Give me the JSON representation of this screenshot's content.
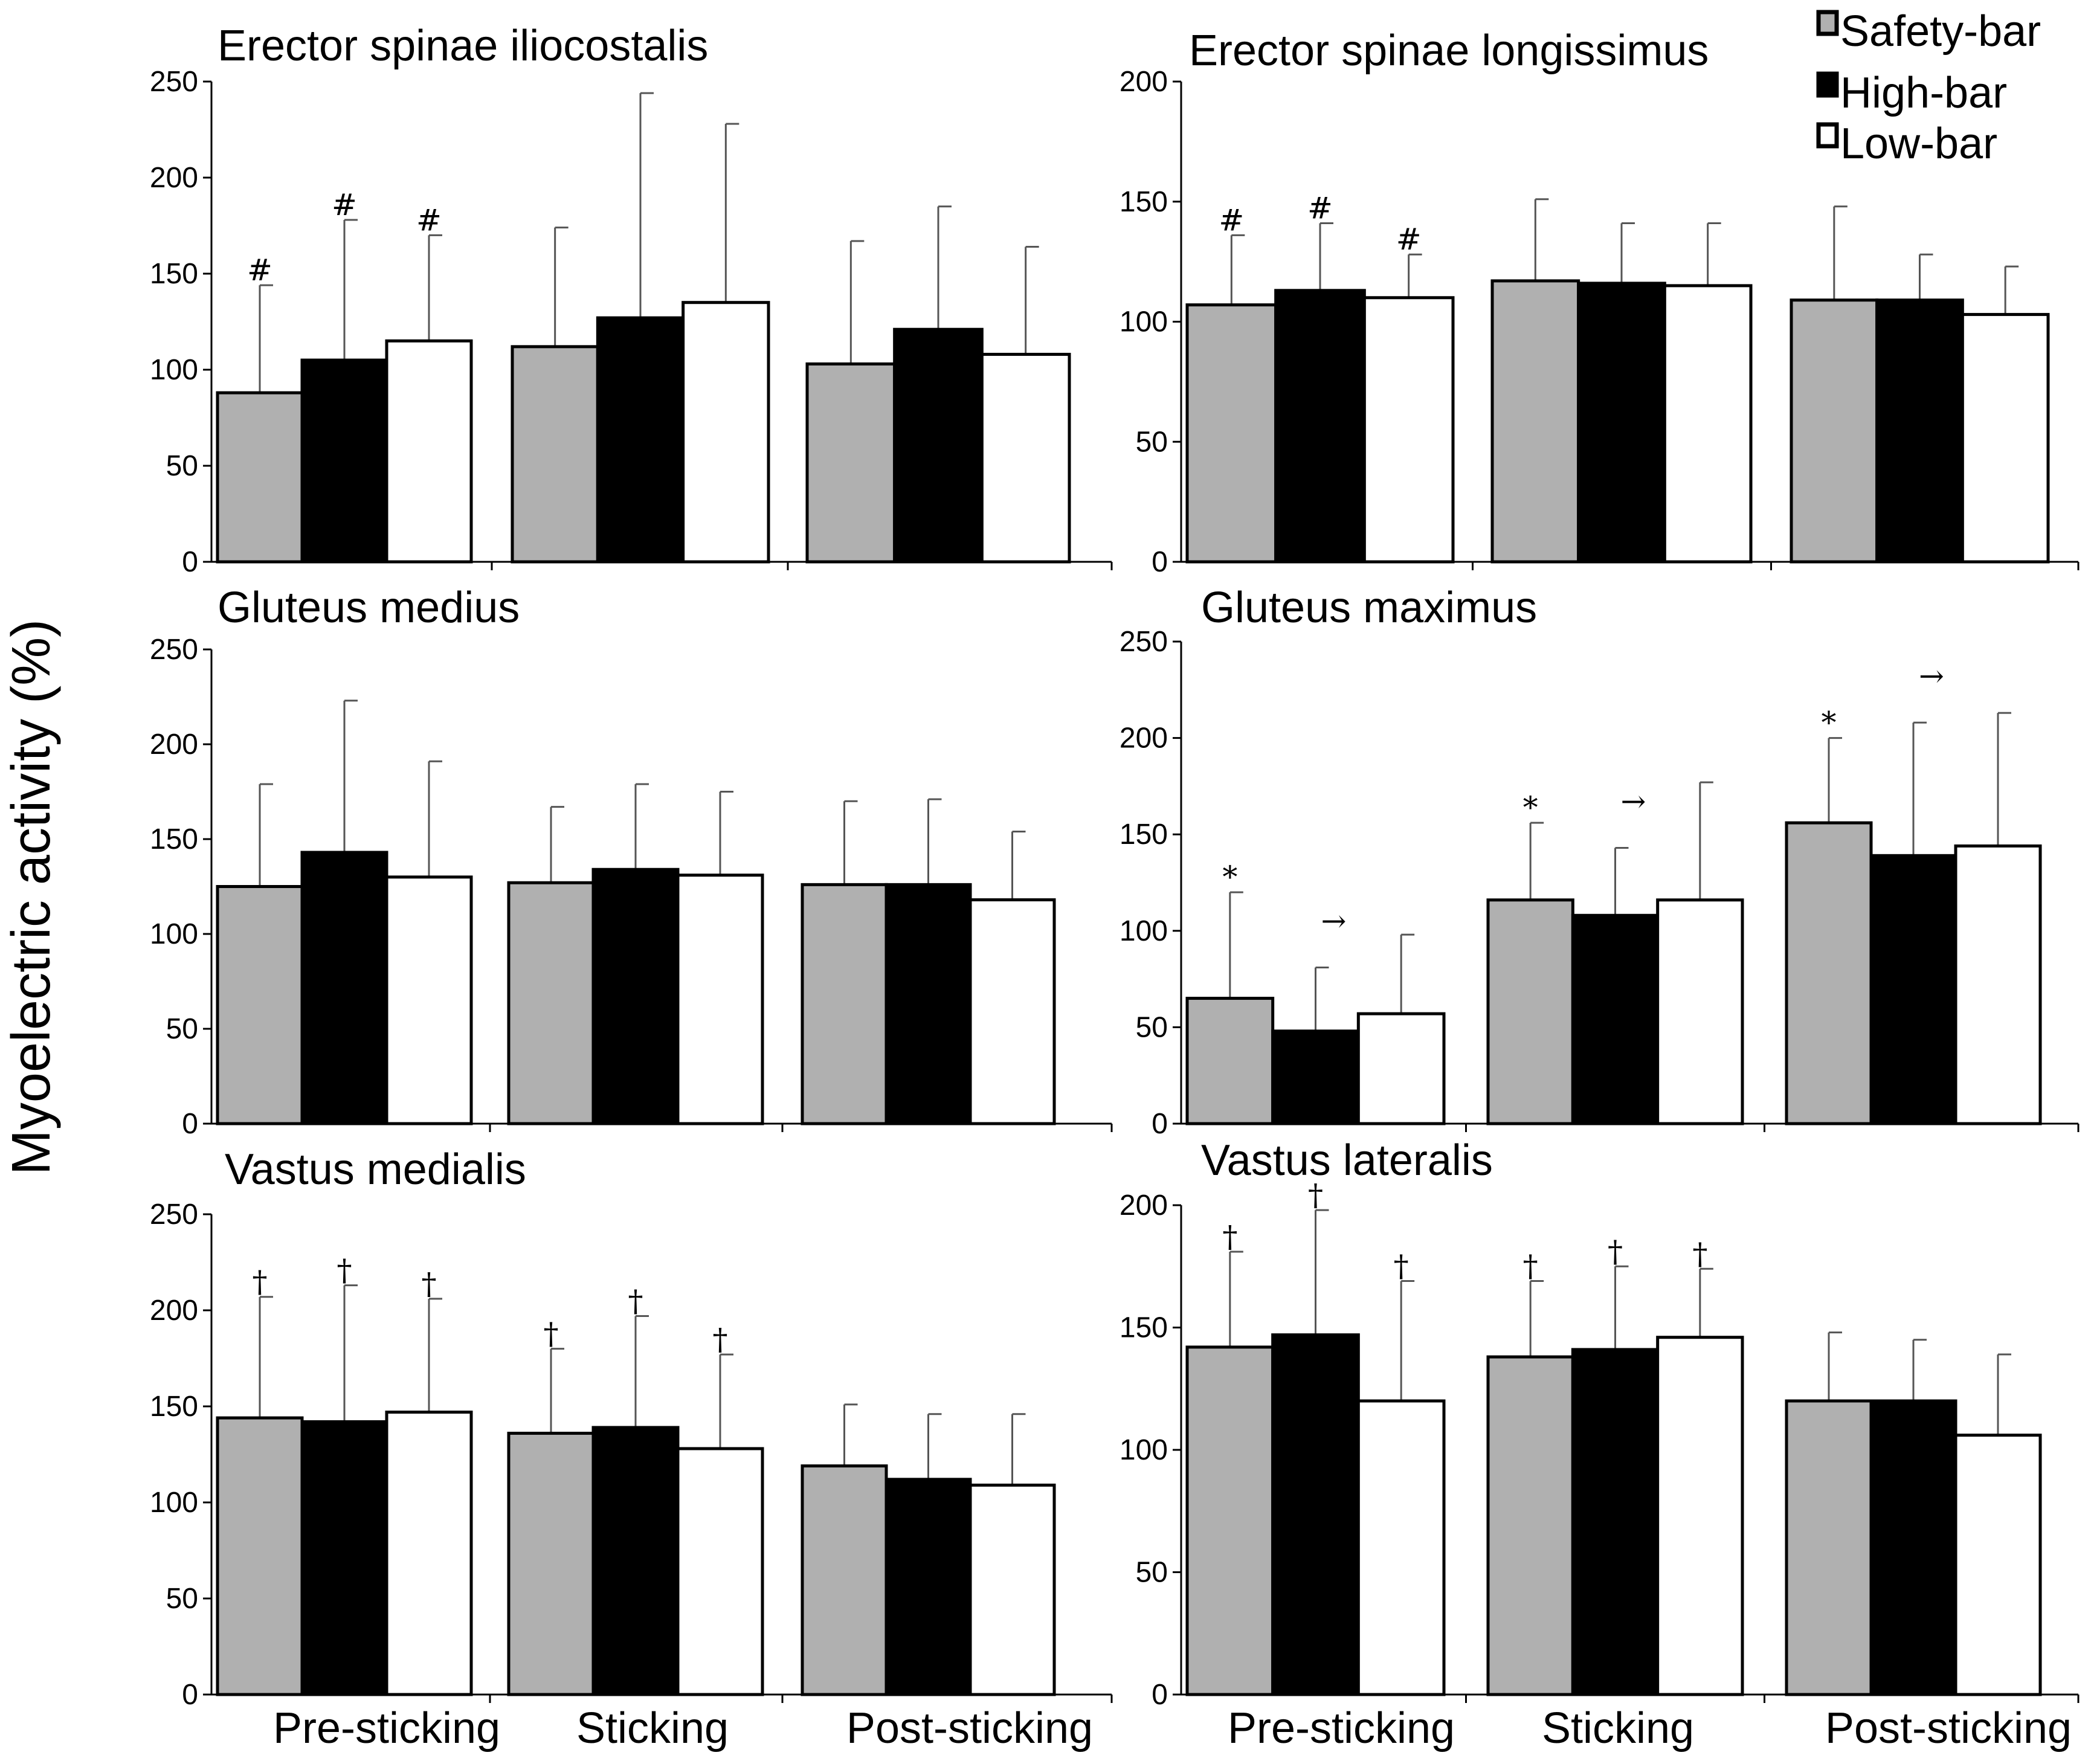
{
  "figure": {
    "ylabel": "Myoelectric activity (%)",
    "legend": [
      {
        "label": "Safety-bar",
        "color": "#b0b0b0"
      },
      {
        "label": "High-bar",
        "color": "#000000"
      },
      {
        "label": "Low-bar",
        "color": "#ffffff"
      }
    ],
    "markers": {
      "hash": "#",
      "star": "*",
      "dagger": "†",
      "arrow": "→"
    }
  },
  "chart_data": [
    {
      "type": "bar",
      "title": "Erector spinae iliocostalis",
      "categories": [
        "Pre-sticking",
        "Sticking",
        "Post-sticking"
      ],
      "ylim": [
        0,
        250
      ],
      "yticks": [
        "0",
        "50",
        "100",
        "150",
        "200",
        "250"
      ],
      "series": [
        {
          "name": "Safety-bar",
          "values": [
            88,
            112,
            103
          ],
          "errors": [
            56,
            62,
            64
          ],
          "markers": [
            "#",
            "",
            ""
          ]
        },
        {
          "name": "High-bar",
          "values": [
            105,
            127,
            121
          ],
          "errors": [
            73,
            117,
            64
          ],
          "markers": [
            "#",
            "",
            ""
          ]
        },
        {
          "name": "Low-bar",
          "values": [
            115,
            135,
            108
          ],
          "errors": [
            55,
            93,
            56
          ],
          "markers": [
            "#",
            "",
            ""
          ]
        }
      ],
      "arrows": []
    },
    {
      "type": "bar",
      "title": "Erector spinae longissimus",
      "categories": [
        "Pre-sticking",
        "Sticking",
        "Post-sticking"
      ],
      "ylim": [
        0,
        200
      ],
      "yticks": [
        "0",
        "50",
        "100",
        "150",
        "200"
      ],
      "series": [
        {
          "name": "Safety-bar",
          "values": [
            107,
            117,
            109
          ],
          "errors": [
            29,
            34,
            39
          ],
          "markers": [
            "#",
            "",
            ""
          ]
        },
        {
          "name": "High-bar",
          "values": [
            113,
            116,
            109
          ],
          "errors": [
            28,
            25,
            19
          ],
          "markers": [
            "#",
            "",
            ""
          ]
        },
        {
          "name": "Low-bar",
          "values": [
            110,
            115,
            103
          ],
          "errors": [
            18,
            26,
            20
          ],
          "markers": [
            "#",
            "",
            ""
          ]
        }
      ],
      "arrows": []
    },
    {
      "type": "bar",
      "title": "Gluteus medius",
      "categories": [
        "Pre-sticking",
        "Sticking",
        "Post-sticking"
      ],
      "ylim": [
        0,
        250
      ],
      "yticks": [
        "0",
        "50",
        "100",
        "150",
        "200",
        "250"
      ],
      "series": [
        {
          "name": "Safety-bar",
          "values": [
            125,
            127,
            126
          ],
          "errors": [
            54,
            40,
            44
          ],
          "markers": [
            "",
            "",
            ""
          ]
        },
        {
          "name": "High-bar",
          "values": [
            143,
            134,
            126
          ],
          "errors": [
            80,
            45,
            45
          ],
          "markers": [
            "",
            "",
            ""
          ]
        },
        {
          "name": "Low-bar",
          "values": [
            130,
            131,
            118
          ],
          "errors": [
            61,
            44,
            36
          ],
          "markers": [
            "",
            "",
            ""
          ]
        }
      ],
      "arrows": []
    },
    {
      "type": "bar",
      "title": "Gluteus maximus",
      "categories": [
        "Pre-sticking",
        "Sticking",
        "Post-sticking"
      ],
      "ylim": [
        0,
        250
      ],
      "yticks": [
        "0",
        "50",
        "100",
        "150",
        "200",
        "250"
      ],
      "series": [
        {
          "name": "Safety-bar",
          "values": [
            65,
            116,
            156
          ],
          "errors": [
            55,
            40,
            44
          ],
          "markers": [
            "*",
            "*",
            "*"
          ]
        },
        {
          "name": "High-bar",
          "values": [
            48,
            108,
            139
          ],
          "errors": [
            33,
            35,
            69
          ],
          "markers": [
            "",
            "",
            ""
          ]
        },
        {
          "name": "Low-bar",
          "values": [
            57,
            116,
            144
          ],
          "errors": [
            41,
            61,
            69
          ],
          "markers": [
            "",
            "",
            ""
          ]
        }
      ],
      "arrows": [
        "→",
        "→",
        "→"
      ]
    },
    {
      "type": "bar",
      "title": "Vastus medialis",
      "categories": [
        "Pre-sticking",
        "Sticking",
        "Post-sticking"
      ],
      "ylim": [
        0,
        250
      ],
      "yticks": [
        "0",
        "50",
        "100",
        "150",
        "200",
        "250"
      ],
      "series": [
        {
          "name": "Safety-bar",
          "values": [
            144,
            136,
            119
          ],
          "errors": [
            63,
            44,
            32
          ],
          "markers": [
            "†",
            "†",
            ""
          ]
        },
        {
          "name": "High-bar",
          "values": [
            142,
            139,
            112
          ],
          "errors": [
            71,
            58,
            34
          ],
          "markers": [
            "†",
            "†",
            ""
          ]
        },
        {
          "name": "Low-bar",
          "values": [
            147,
            128,
            109
          ],
          "errors": [
            59,
            49,
            37
          ],
          "markers": [
            "†",
            "†",
            ""
          ]
        }
      ],
      "arrows": []
    },
    {
      "type": "bar",
      "title": "Vastus lateralis",
      "categories": [
        "Pre-sticking",
        "Sticking",
        "Post-sticking"
      ],
      "ylim": [
        0,
        200
      ],
      "yticks": [
        "0",
        "50",
        "100",
        "150",
        "200"
      ],
      "series": [
        {
          "name": "Safety-bar",
          "values": [
            142,
            138,
            120
          ],
          "errors": [
            39,
            31,
            28
          ],
          "markers": [
            "†",
            "†",
            ""
          ]
        },
        {
          "name": "High-bar",
          "values": [
            147,
            141,
            120
          ],
          "errors": [
            51,
            34,
            25
          ],
          "markers": [
            "†",
            "†",
            ""
          ]
        },
        {
          "name": "Low-bar",
          "values": [
            120,
            146,
            106
          ],
          "errors": [
            49,
            28,
            33
          ],
          "markers": [
            "†",
            "†",
            ""
          ]
        }
      ],
      "arrows": []
    }
  ]
}
